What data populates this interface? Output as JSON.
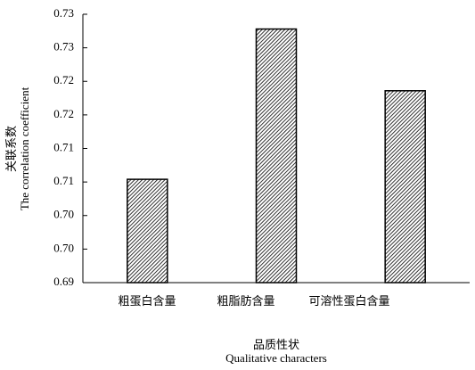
{
  "chart_data": {
    "type": "bar",
    "x_label": "品质性状",
    "x_label_en": "Qualitative characters",
    "y_label": "关联系数",
    "y_label_en": "The correlation coefficient",
    "categories": [
      "粗蛋白含量",
      "粗脂肪含量",
      "可溶性蛋白含量"
    ],
    "values": [
      0.7104,
      0.7328,
      0.7236
    ],
    "color": "#000000",
    "ylim": [
      0.695,
      0.735
    ],
    "yticks": [
      {
        "value": 0.695,
        "label": "0.69"
      },
      {
        "value": 0.7,
        "label": "0.70"
      },
      {
        "value": 0.705,
        "label": "0.70"
      },
      {
        "value": 0.71,
        "label": "0.71"
      },
      {
        "value": 0.715,
        "label": "0.71"
      },
      {
        "value": 0.72,
        "label": "0.72"
      },
      {
        "value": 0.725,
        "label": "0.72"
      },
      {
        "value": 0.73,
        "label": "0.73"
      },
      {
        "value": 0.735,
        "label": "0.73"
      }
    ],
    "grid": false
  }
}
